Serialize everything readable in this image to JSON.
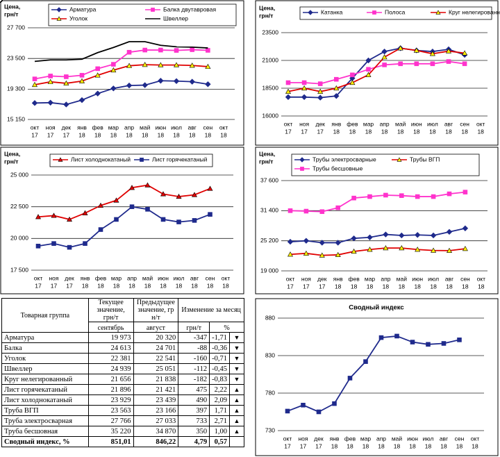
{
  "chart_data": [
    {
      "type": "line",
      "ylabel": [
        "Цена,",
        "грн/т"
      ],
      "categories": [
        [
          "окт",
          "17"
        ],
        [
          "ноя",
          "17"
        ],
        [
          "дек",
          "17"
        ],
        [
          "янв",
          "18"
        ],
        [
          "фев",
          "18"
        ],
        [
          "мар",
          "18"
        ],
        [
          "апр",
          "18"
        ],
        [
          "май",
          "18"
        ],
        [
          "июн",
          "18"
        ],
        [
          "июл",
          "18"
        ],
        [
          "авг",
          "18"
        ],
        [
          "сен",
          "18"
        ],
        [
          "окт",
          "18"
        ]
      ],
      "ylim": [
        15150,
        27700
      ],
      "yticks": [
        {
          "value": 15150,
          "label": "15 150"
        },
        {
          "value": 19300,
          "label": "19 300"
        },
        {
          "value": 23500,
          "label": "23 500"
        },
        {
          "value": 27700,
          "label": "27 700"
        }
      ],
      "grid": true,
      "series": [
        {
          "name": "Арматура",
          "color": "#1f2a8c",
          "marker": "diamond",
          "marker_fill": "#1f2a8c",
          "values": [
            17400,
            17450,
            17200,
            17800,
            18700,
            19400,
            19800,
            19850,
            20450,
            20400,
            20320,
            19973,
            null
          ]
        },
        {
          "name": "Балка двутавровая",
          "color": "#ff33cc",
          "marker": "square",
          "marker_fill": "#ff33cc",
          "values": [
            20700,
            21100,
            21000,
            21200,
            22100,
            22700,
            24350,
            24650,
            24650,
            24600,
            24701,
            24613,
            null
          ]
        },
        {
          "name": "Уголок",
          "color": "#e00000",
          "marker": "triangle",
          "marker_fill": "#ffee00",
          "values": [
            19900,
            20300,
            20100,
            20400,
            21200,
            21900,
            22500,
            22650,
            22600,
            22600,
            22541,
            22381,
            null
          ]
        },
        {
          "name": "Швеллер",
          "color": "#000000",
          "marker": "circle",
          "marker_fill": "#ffffff",
          "values": [
            23100,
            23300,
            23300,
            23400,
            24300,
            25000,
            25800,
            25800,
            25300,
            25100,
            25051,
            24939,
            null
          ]
        }
      ]
    },
    {
      "type": "line",
      "ylabel": [
        "Цена,",
        "грн/т"
      ],
      "categories": [
        [
          "окт",
          "17"
        ],
        [
          "ноя",
          "17"
        ],
        [
          "дек",
          "17"
        ],
        [
          "янв",
          "18"
        ],
        [
          "фев",
          "18"
        ],
        [
          "мар",
          "18"
        ],
        [
          "апр",
          "18"
        ],
        [
          "май",
          "18"
        ],
        [
          "июн",
          "18"
        ],
        [
          "июл",
          "18"
        ],
        [
          "авг",
          "18"
        ],
        [
          "сен",
          "18"
        ],
        [
          "окт",
          "18"
        ]
      ],
      "ylim": [
        16000,
        23500
      ],
      "yticks": [
        16000,
        18500,
        21000,
        23500
      ],
      "grid": true,
      "series": [
        {
          "name": "Катанка",
          "color": "#1f2a8c",
          "marker": "diamond",
          "marker_fill": "#1f2a8c",
          "values": [
            17700,
            17700,
            17650,
            17800,
            19400,
            21000,
            21800,
            22100,
            21900,
            21800,
            22000,
            21500,
            null
          ]
        },
        {
          "name": "Полоса",
          "color": "#ff33cc",
          "marker": "square",
          "marker_fill": "#ff33cc",
          "values": [
            19000,
            19000,
            18900,
            19300,
            19700,
            20200,
            20600,
            20700,
            20700,
            20700,
            20900,
            20700,
            null
          ]
        },
        {
          "name": "Круг нелегированный",
          "color": "#e00000",
          "marker": "triangle",
          "marker_fill": "#ffee00",
          "values": [
            18200,
            18500,
            18200,
            18500,
            19000,
            19700,
            21300,
            22100,
            21900,
            21600,
            21838,
            21656,
            null
          ]
        }
      ]
    },
    {
      "type": "line",
      "ylabel": [
        "Цена,",
        "грн/т"
      ],
      "categories": [
        [
          "окт",
          "17"
        ],
        [
          "ноя",
          "17"
        ],
        [
          "дек",
          "17"
        ],
        [
          "янв",
          "18"
        ],
        [
          "фев",
          "18"
        ],
        [
          "мар",
          "18"
        ],
        [
          "апр",
          "18"
        ],
        [
          "май",
          "18"
        ],
        [
          "июн",
          "18"
        ],
        [
          "июл",
          "18"
        ],
        [
          "авг",
          "18"
        ],
        [
          "сен",
          "18"
        ],
        [
          "окт",
          "18"
        ]
      ],
      "ylim": [
        17500,
        25000
      ],
      "yticks": [
        {
          "value": 17500,
          "label": "17 500"
        },
        {
          "value": 20000,
          "label": "20 000"
        },
        {
          "value": 22500,
          "label": "22 500"
        },
        {
          "value": 25000,
          "label": "25 000"
        }
      ],
      "grid": true,
      "series": [
        {
          "name": "Лист холоднокатаный",
          "color": "#e00000",
          "marker": "triangle",
          "marker_fill": "#e00000",
          "values": [
            21700,
            21800,
            21500,
            22000,
            22600,
            23000,
            24000,
            24200,
            23500,
            23300,
            23439,
            23929,
            null
          ]
        },
        {
          "name": "Лист горячекатаный",
          "color": "#1f2a8c",
          "marker": "square",
          "marker_fill": "#1f2a8c",
          "values": [
            19400,
            19600,
            19300,
            19600,
            20700,
            21500,
            22500,
            22300,
            21500,
            21300,
            21421,
            21896,
            null
          ]
        }
      ]
    },
    {
      "type": "line",
      "ylabel": [
        "Цена,",
        "грн/т"
      ],
      "categories": [
        [
          "окт",
          "17"
        ],
        [
          "ноя",
          "17"
        ],
        [
          "дек",
          "17"
        ],
        [
          "янв",
          "18"
        ],
        [
          "фев",
          "18"
        ],
        [
          "мар",
          "18"
        ],
        [
          "апр",
          "18"
        ],
        [
          "май",
          "18"
        ],
        [
          "июн",
          "18"
        ],
        [
          "июл",
          "18"
        ],
        [
          "авг",
          "18"
        ],
        [
          "сен",
          "18"
        ],
        [
          "окт",
          "18"
        ]
      ],
      "ylim": [
        19000,
        37600
      ],
      "yticks": [
        {
          "value": 19000,
          "label": "19 000"
        },
        {
          "value": 25200,
          "label": "25 200"
        },
        {
          "value": 31400,
          "label": "31 400"
        },
        {
          "value": 37600,
          "label": "37 600"
        }
      ],
      "grid": true,
      "series": [
        {
          "name": "Трубы электросварные",
          "color": "#1f2a8c",
          "marker": "diamond",
          "marker_fill": "#1f2a8c",
          "values": [
            25000,
            25200,
            24800,
            24800,
            25700,
            25900,
            26500,
            26300,
            26400,
            26300,
            27033,
            27766,
            null
          ]
        },
        {
          "name": "Трубы ВГП",
          "color": "#e00000",
          "marker": "triangle",
          "marker_fill": "#ffee00",
          "values": [
            22400,
            22600,
            22200,
            22300,
            23000,
            23400,
            23700,
            23700,
            23400,
            23200,
            23166,
            23563,
            null
          ]
        },
        {
          "name": "Трубы бесшовные",
          "color": "#ff33cc",
          "marker": "square",
          "marker_fill": "#ff33cc",
          "values": [
            31400,
            31300,
            31200,
            32000,
            34000,
            34300,
            34600,
            34500,
            34300,
            34300,
            34870,
            35220,
            null
          ]
        }
      ]
    },
    {
      "type": "line",
      "title": "Сводный индекс",
      "categories": [
        [
          "окт",
          "17"
        ],
        [
          "ноя",
          "17"
        ],
        [
          "дек",
          "17"
        ],
        [
          "янв",
          "18"
        ],
        [
          "фев",
          "18"
        ],
        [
          "мар",
          "18"
        ],
        [
          "апр",
          "18"
        ],
        [
          "май",
          "18"
        ],
        [
          "июн",
          "18"
        ],
        [
          "июл",
          "18"
        ],
        [
          "авг",
          "18"
        ],
        [
          "сен",
          "18"
        ],
        [
          "окт",
          "18"
        ]
      ],
      "ylim": [
        730,
        880
      ],
      "yticks": [
        730,
        780,
        830,
        880
      ],
      "grid": true,
      "series": [
        {
          "name": "Сводный индекс",
          "color": "#1f2a8c",
          "marker": "square",
          "marker_fill": "#1f2a8c",
          "values": [
            756,
            764,
            755,
            766,
            800,
            822,
            854,
            856,
            848,
            845,
            846.22,
            851.01,
            null
          ]
        }
      ]
    }
  ],
  "table": {
    "header": {
      "group": "Товарная группа",
      "current": "Текущее значение, грн/т",
      "previous": "Предыдущее значение, грн/т",
      "change": "Изменение за месяц"
    },
    "subheaders": [
      "сентябрь",
      "август",
      "грн/т",
      "%"
    ],
    "rows": [
      [
        "Арматура",
        "19 973",
        "20 320",
        "-347",
        "-1,71",
        "▼"
      ],
      [
        "Балка",
        "24 613",
        "24 701",
        "-88",
        "-0,36",
        "▼"
      ],
      [
        "Уголок",
        "22 381",
        "22 541",
        "-160",
        "-0,71",
        "▼"
      ],
      [
        "Швеллер",
        "24 939",
        "25 051",
        "-112",
        "-0,45",
        "▼"
      ],
      [
        "Круг нелегированный",
        "21 656",
        "21 838",
        "-182",
        "-0,83",
        "▼"
      ],
      [
        "Лист горячекатаный",
        "21 896",
        "21 421",
        "475",
        "2,22",
        "▲"
      ],
      [
        "Лист холоднокатаный",
        "23 929",
        "23 439",
        "490",
        "2,09",
        "▲"
      ],
      [
        "Труба ВГП",
        "23 563",
        "23 166",
        "397",
        "1,71",
        "▲"
      ],
      [
        "Труба электросварная",
        "27 766",
        "27 033",
        "733",
        "2,71",
        "▲"
      ],
      [
        "Труба бесшовная",
        "35 220",
        "34 870",
        "350",
        "1,00",
        "▲"
      ],
      [
        "Сводный индекс, %",
        "851,01",
        "846,22",
        "4,79",
        "0,57"
      ]
    ]
  }
}
